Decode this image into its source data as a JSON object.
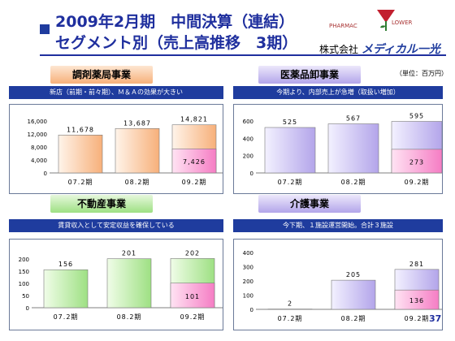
{
  "header": {
    "title_line1": "2009年2月期　中間決算（連結）",
    "title_line2": "セグメント別（売上高推移　3期）",
    "logo_text_left": "PHARMAC",
    "logo_text_right": "LOWER",
    "company_prefix": "株式会社",
    "company_brand": "メディカル一光",
    "unit": "（単位：百万円）"
  },
  "segments": [
    {
      "title": "調剤薬局事業",
      "note": "新店（前期・前々期）、Ｍ＆Ａの効果が大きい",
      "chart_data": {
        "type": "bar",
        "categories": [
          "07.2期",
          "08.2期",
          "09.2期"
        ],
        "series": [
          {
            "values": [
              11678,
              13687,
              14821
            ]
          }
        ],
        "highlight_portion": 7426,
        "labels": [
          "11,678",
          "13,687",
          "14,821",
          "7,426"
        ],
        "yticks": [
          "16,000",
          "12,000",
          "8,000",
          "4,000",
          "0"
        ],
        "ylim": [
          0,
          16000
        ]
      }
    },
    {
      "title": "医薬品卸事業",
      "note": "今期より、内部売上が急増（取扱い増加）",
      "chart_data": {
        "type": "bar",
        "categories": [
          "07.2期",
          "08.2期",
          "09.2期"
        ],
        "series": [
          {
            "values": [
              525,
              567,
              595
            ]
          }
        ],
        "highlight_portion": 273,
        "labels": [
          "525",
          "567",
          "595",
          "273"
        ],
        "yticks": [
          "600",
          "400",
          "200",
          "0"
        ],
        "ylim": [
          0,
          600
        ]
      }
    },
    {
      "title": "不動産事業",
      "note": "賃貸収入として安定収益を確保している",
      "chart_data": {
        "type": "bar",
        "categories": [
          "07.2期",
          "08.2期",
          "09.2期"
        ],
        "series": [
          {
            "values": [
              156,
              201,
              202
            ]
          }
        ],
        "highlight_portion": 101,
        "labels": [
          "156",
          "201",
          "202",
          "101"
        ],
        "yticks": [
          "200",
          "150",
          "100",
          "50",
          "0"
        ],
        "ylim": [
          0,
          200
        ]
      }
    },
    {
      "title": "介護事業",
      "note": "今下期、１施設運営開始。合計３施設",
      "chart_data": {
        "type": "bar",
        "categories": [
          "07.2期",
          "08.2期",
          "09.2期"
        ],
        "series": [
          {
            "values": [
              2,
              205,
              281
            ]
          }
        ],
        "highlight_portion": 136,
        "labels": [
          "2",
          "205",
          "281",
          "136"
        ],
        "yticks": [
          "400",
          "300",
          "200",
          "100",
          "0"
        ],
        "ylim": [
          0,
          400
        ]
      }
    }
  ],
  "page_number": "37",
  "colors": {
    "title_blue": "#1f2f9e",
    "orange_bar": "#f7b07a",
    "purple_bar": "#b3a5ea",
    "green_bar": "#9ee083",
    "pink_portion": "#f57dc4"
  }
}
